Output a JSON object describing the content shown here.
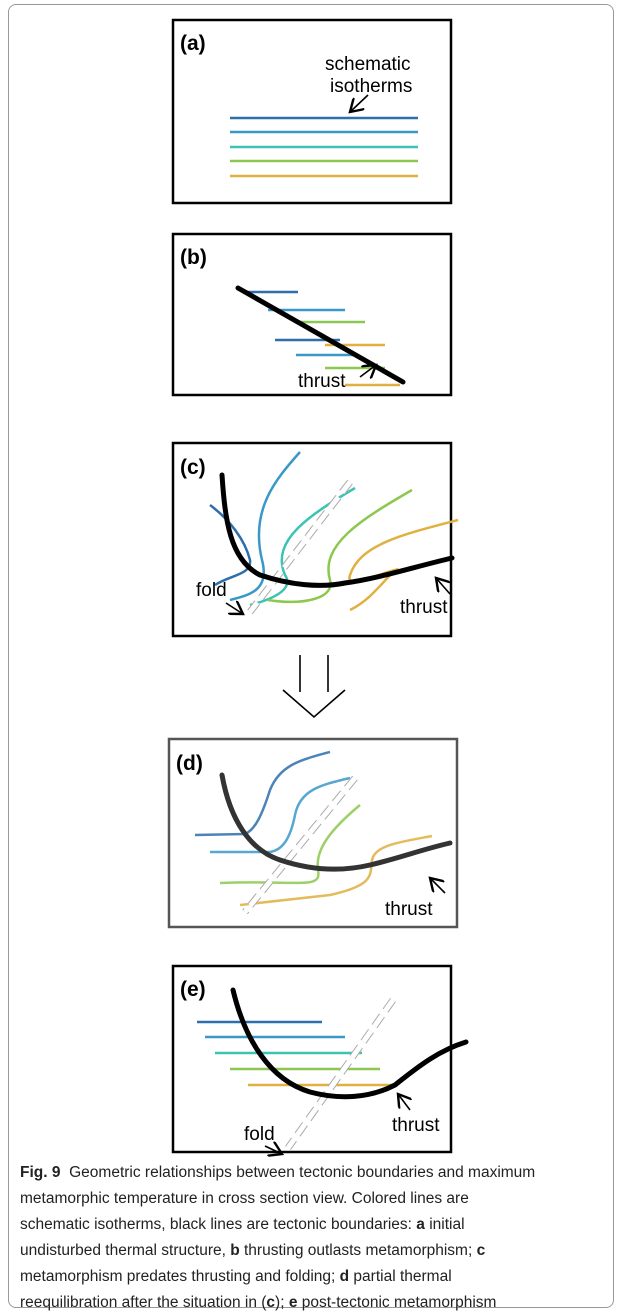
{
  "panels": [
    {
      "label": "(a)",
      "annotations": [
        "schematic",
        "isotherms"
      ]
    },
    {
      "label": "(b)",
      "annotations": [
        "thrust"
      ]
    },
    {
      "label": "(c)",
      "annotations": [
        "fold",
        "thrust"
      ]
    },
    {
      "label": "(d)",
      "annotations": [
        "thrust"
      ]
    },
    {
      "label": "(e)",
      "annotations": [
        "fold",
        "thrust"
      ]
    }
  ],
  "caption": {
    "parts": [
      "Fig. 9",
      "Geometric relationships between tectonic boundaries and maximum metamorphic temperature in cross section view. Colored lines are schematic isotherms, black lines are tectonic boundaries: ",
      "a",
      " initial undisturbed thermal structure, ",
      "b",
      " thrusting outlasts metamorphism; ",
      "c",
      " metamorphism predates thrusting and folding; ",
      "d",
      " partial thermal reequilibration after the situation in (",
      "c",
      "); ",
      "e",
      " post-tectonic metamorphism"
    ]
  }
}
